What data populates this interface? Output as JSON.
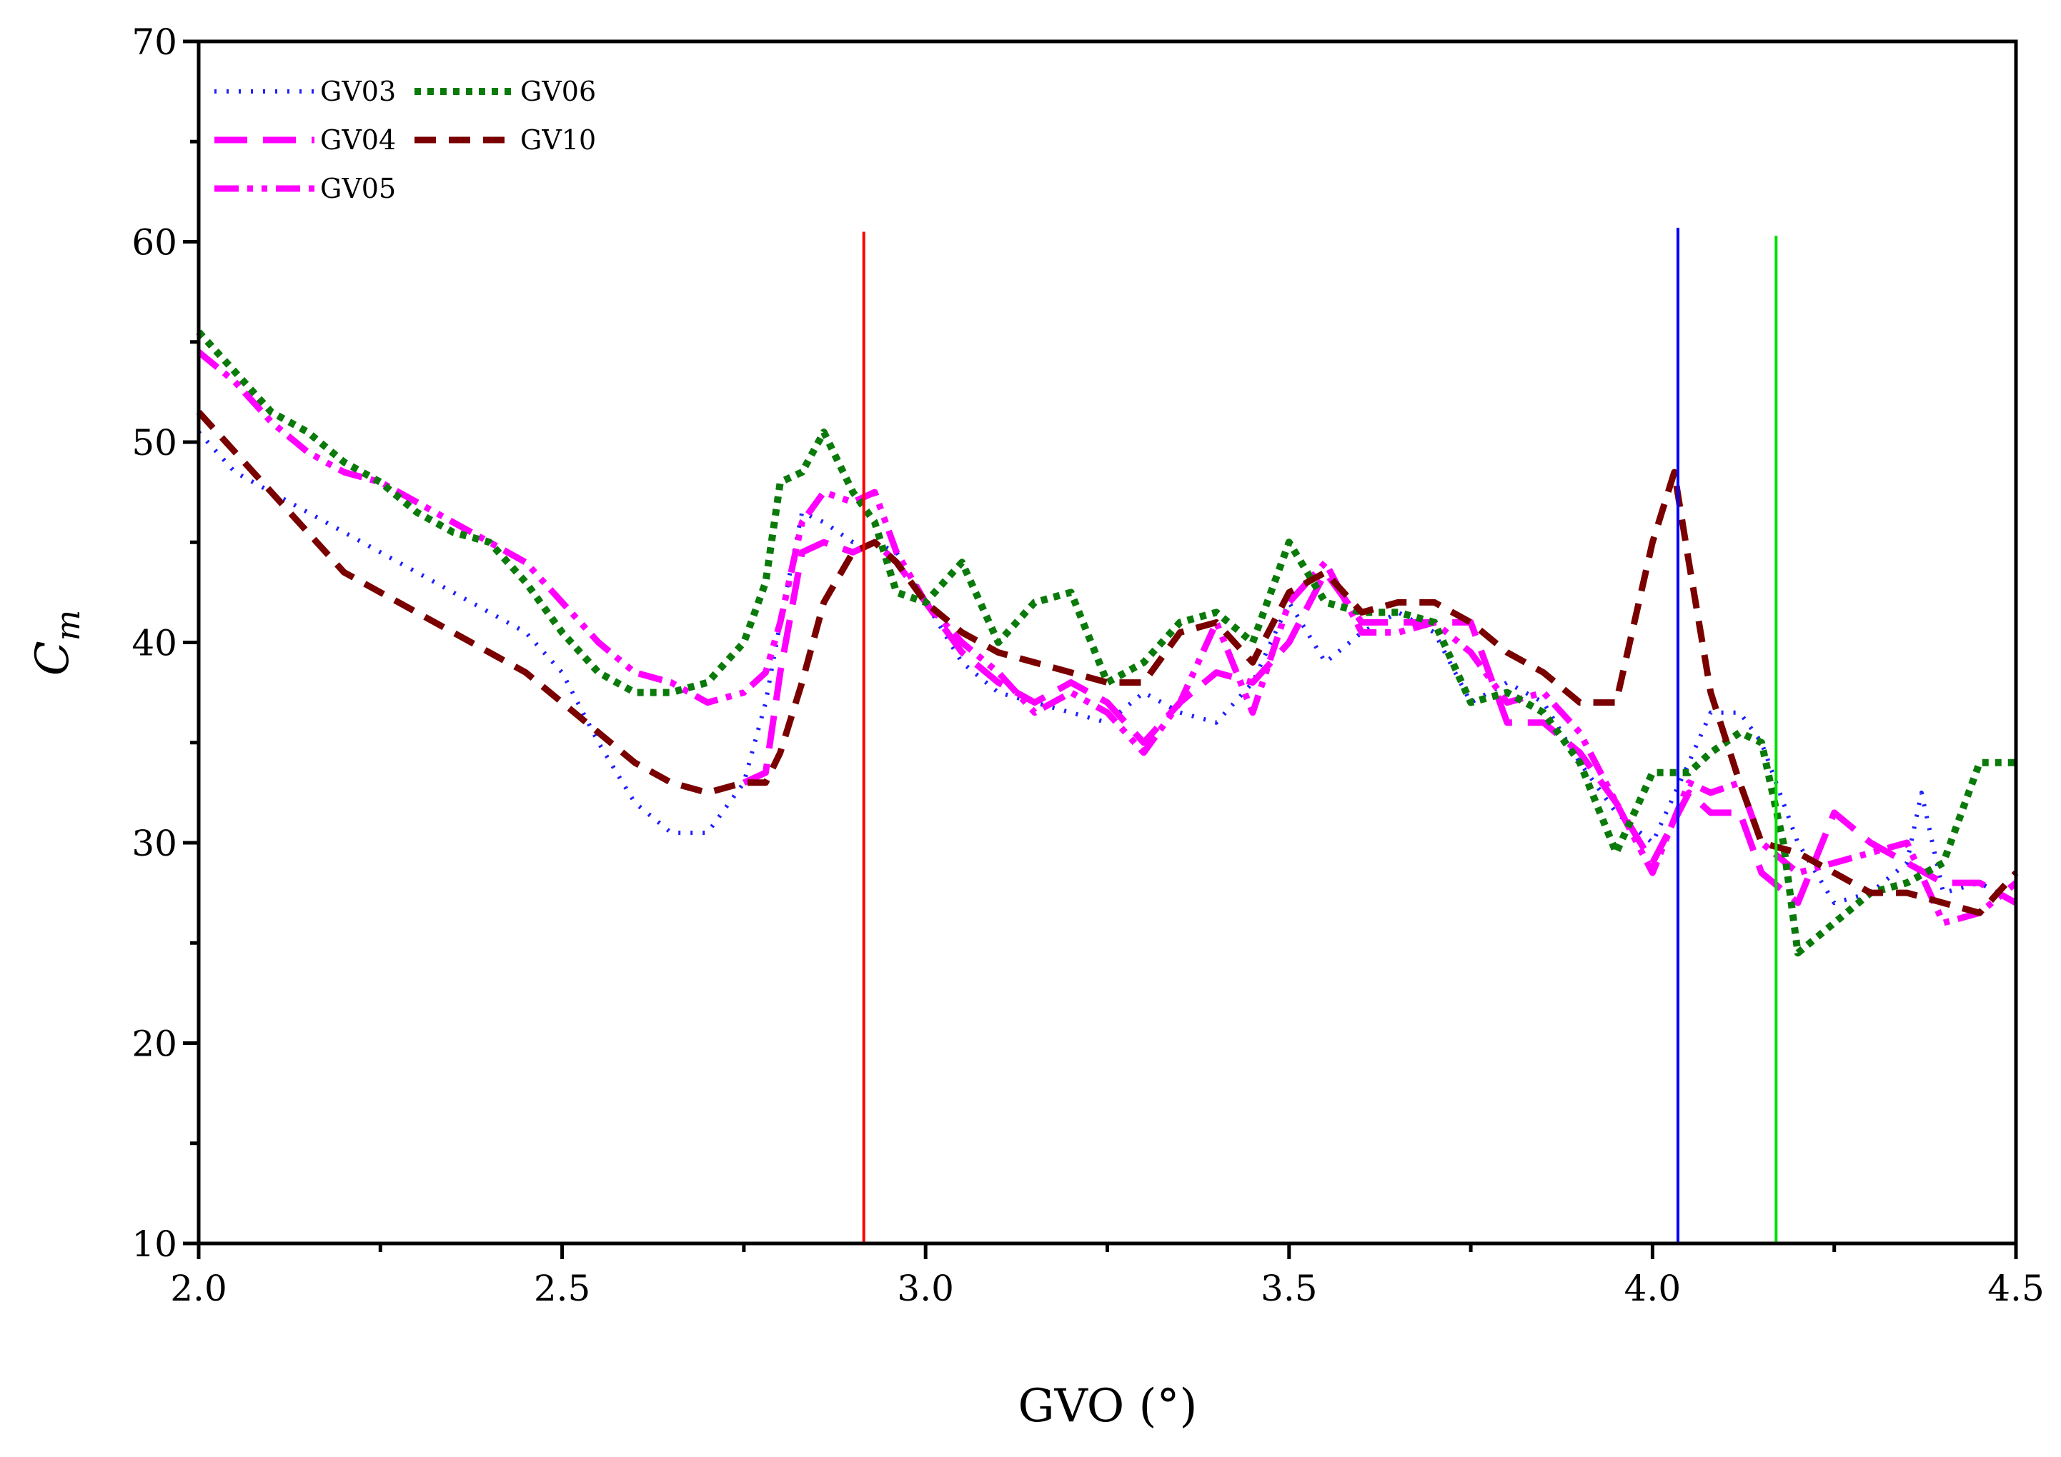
{
  "chart_data": {
    "type": "line",
    "title": "",
    "xlabel": "GVO (°)",
    "ylabel": "C",
    "ylabel_sub": "m",
    "xlim": [
      2.0,
      4.5
    ],
    "ylim": [
      10,
      70
    ],
    "xticks": [
      2.0,
      2.5,
      3.0,
      3.5,
      4.0,
      4.5
    ],
    "xtick_labels": [
      "2.0",
      "2.5",
      "3.0",
      "3.5",
      "4.0",
      "4.5"
    ],
    "yticks": [
      10,
      20,
      30,
      40,
      50,
      60,
      70
    ],
    "ytick_labels": [
      "10",
      "20",
      "30",
      "40",
      "50",
      "60",
      "70"
    ],
    "grid": false,
    "legend_position": "top-left",
    "series": [
      {
        "name": "GV03",
        "color": "#1f1fff",
        "style": "dotted-fine",
        "x": [
          2.0,
          2.05,
          2.1,
          2.15,
          2.2,
          2.25,
          2.3,
          2.35,
          2.4,
          2.45,
          2.5,
          2.55,
          2.6,
          2.65,
          2.7,
          2.75,
          2.78,
          2.8,
          2.83,
          2.86,
          2.9,
          2.93,
          2.96,
          3.0,
          3.05,
          3.1,
          3.15,
          3.2,
          3.25,
          3.3,
          3.35,
          3.4,
          3.45,
          3.5,
          3.55,
          3.6,
          3.65,
          3.7,
          3.75,
          3.8,
          3.85,
          3.9,
          3.95,
          4.0,
          4.05,
          4.08,
          4.12,
          4.15,
          4.2,
          4.25,
          4.3,
          4.35,
          4.37,
          4.4,
          4.45,
          4.5
        ],
        "y": [
          50.5,
          48.5,
          47.5,
          46.5,
          45.5,
          44.5,
          43.5,
          42.5,
          41.5,
          40.5,
          38.5,
          35.0,
          32.0,
          30.5,
          30.5,
          33.0,
          37.0,
          41.0,
          46.5,
          46.0,
          45.0,
          45.0,
          44.5,
          42.0,
          39.0,
          37.5,
          37.0,
          36.5,
          36.0,
          37.5,
          36.5,
          36.0,
          38.0,
          42.0,
          39.0,
          40.5,
          41.5,
          40.5,
          37.0,
          38.0,
          37.0,
          34.0,
          31.5,
          30.0,
          34.0,
          36.5,
          36.5,
          35.0,
          30.0,
          27.0,
          27.5,
          29.0,
          32.5,
          27.5,
          28.0,
          27.0
        ]
      },
      {
        "name": "GV04",
        "color": "#ff00ff",
        "style": "long-dash",
        "x": [
          2.75,
          2.78,
          2.8,
          2.83,
          2.86,
          2.9,
          2.93,
          2.96,
          3.0,
          3.05,
          3.1,
          3.15,
          3.2,
          3.25,
          3.3,
          3.35,
          3.4,
          3.45,
          3.5,
          3.55,
          3.6,
          3.65,
          3.7,
          3.75,
          3.8,
          3.85,
          3.9,
          3.95,
          4.0,
          4.05,
          4.08,
          4.12,
          4.15,
          4.2,
          4.25,
          4.3,
          4.35,
          4.4,
          4.45,
          4.5
        ],
        "y": [
          33.0,
          33.5,
          38.5,
          44.5,
          45.0,
          44.5,
          45.0,
          44.0,
          42.0,
          39.5,
          38.0,
          37.0,
          38.0,
          37.0,
          35.0,
          37.0,
          38.5,
          38.0,
          40.0,
          43.5,
          41.0,
          41.0,
          41.0,
          41.0,
          36.0,
          36.0,
          34.5,
          32.0,
          29.0,
          32.5,
          31.5,
          31.5,
          28.5,
          27.0,
          31.5,
          30.0,
          29.0,
          28.0,
          28.0,
          27.0
        ]
      },
      {
        "name": "GV05",
        "color": "#ff00ff",
        "style": "dash-dot-dot",
        "x": [
          2.0,
          2.05,
          2.1,
          2.15,
          2.2,
          2.25,
          2.3,
          2.35,
          2.4,
          2.45,
          2.5,
          2.55,
          2.6,
          2.65,
          2.7,
          2.75,
          2.78,
          2.8,
          2.83,
          2.86,
          2.9,
          2.93,
          2.96,
          3.0,
          3.05,
          3.1,
          3.15,
          3.2,
          3.25,
          3.3,
          3.35,
          3.4,
          3.45,
          3.5,
          3.55,
          3.6,
          3.65,
          3.7,
          3.75,
          3.8,
          3.85,
          3.9,
          3.95,
          4.0,
          4.05,
          4.08,
          4.12,
          4.15,
          4.2,
          4.25,
          4.3,
          4.35,
          4.4,
          4.45,
          4.5
        ],
        "y": [
          54.5,
          53.0,
          51.0,
          49.5,
          48.5,
          48.0,
          47.0,
          46.0,
          45.0,
          44.0,
          42.0,
          40.0,
          38.5,
          38.0,
          37.0,
          37.5,
          38.5,
          41.0,
          46.0,
          47.5,
          47.0,
          47.5,
          44.5,
          42.0,
          40.0,
          38.5,
          36.5,
          37.5,
          36.5,
          34.5,
          37.0,
          41.0,
          36.5,
          42.0,
          44.0,
          40.5,
          40.5,
          41.0,
          39.5,
          37.0,
          37.5,
          35.5,
          32.0,
          28.5,
          33.0,
          32.5,
          33.0,
          30.0,
          28.5,
          29.0,
          29.5,
          30.0,
          26.0,
          26.5,
          28.0
        ]
      },
      {
        "name": "GV06",
        "color": "#0a7a0a",
        "style": "dotted-heavy",
        "x": [
          2.0,
          2.05,
          2.1,
          2.15,
          2.2,
          2.25,
          2.3,
          2.35,
          2.4,
          2.45,
          2.5,
          2.55,
          2.6,
          2.65,
          2.7,
          2.75,
          2.78,
          2.8,
          2.83,
          2.86,
          2.9,
          2.93,
          2.96,
          3.0,
          3.05,
          3.1,
          3.15,
          3.2,
          3.25,
          3.3,
          3.35,
          3.4,
          3.45,
          3.5,
          3.55,
          3.6,
          3.65,
          3.7,
          3.75,
          3.8,
          3.85,
          3.9,
          3.95,
          4.0,
          4.05,
          4.08,
          4.12,
          4.15,
          4.18,
          4.2,
          4.25,
          4.3,
          4.35,
          4.4,
          4.45,
          4.5
        ],
        "y": [
          55.5,
          53.5,
          51.5,
          50.5,
          49.0,
          48.0,
          46.5,
          45.5,
          45.0,
          43.0,
          40.5,
          38.5,
          37.5,
          37.5,
          38.0,
          40.0,
          43.0,
          48.0,
          48.5,
          50.5,
          47.5,
          46.0,
          42.5,
          42.0,
          44.0,
          40.0,
          42.0,
          42.5,
          38.0,
          39.0,
          41.0,
          41.5,
          40.0,
          45.0,
          42.0,
          41.5,
          41.5,
          41.0,
          37.0,
          37.5,
          36.5,
          34.0,
          29.5,
          33.5,
          33.5,
          34.5,
          35.5,
          35.0,
          30.0,
          24.5,
          26.0,
          27.5,
          28.0,
          29.0,
          34.0,
          34.0
        ]
      },
      {
        "name": "GV10",
        "color": "#7a0000",
        "style": "dash",
        "x": [
          2.0,
          2.05,
          2.1,
          2.15,
          2.2,
          2.25,
          2.3,
          2.35,
          2.4,
          2.45,
          2.5,
          2.55,
          2.6,
          2.65,
          2.7,
          2.75,
          2.78,
          2.8,
          2.83,
          2.86,
          2.9,
          2.93,
          2.96,
          3.0,
          3.05,
          3.1,
          3.15,
          3.2,
          3.25,
          3.3,
          3.35,
          3.4,
          3.45,
          3.5,
          3.55,
          3.6,
          3.65,
          3.7,
          3.75,
          3.8,
          3.85,
          3.9,
          3.95,
          4.0,
          4.03,
          4.05,
          4.08,
          4.12,
          4.15,
          4.2,
          4.25,
          4.3,
          4.35,
          4.4,
          4.45,
          4.5
        ],
        "y": [
          51.5,
          49.5,
          47.5,
          45.5,
          43.5,
          42.5,
          41.5,
          40.5,
          39.5,
          38.5,
          37.0,
          35.5,
          34.0,
          33.0,
          32.5,
          33.0,
          33.0,
          34.5,
          38.0,
          42.0,
          44.5,
          45.0,
          44.0,
          42.0,
          40.5,
          39.5,
          39.0,
          38.5,
          38.0,
          38.0,
          40.5,
          41.0,
          39.0,
          42.5,
          43.5,
          41.5,
          42.0,
          42.0,
          41.0,
          39.5,
          38.5,
          37.0,
          37.0,
          45.0,
          48.5,
          44.0,
          37.5,
          33.0,
          30.0,
          29.5,
          28.5,
          27.5,
          27.5,
          27.0,
          26.5,
          28.5
        ]
      }
    ],
    "vertical_markers": [
      {
        "x": 2.915,
        "y_from": 10,
        "y_to": 60.5,
        "color": "#ff0000"
      },
      {
        "x": 4.035,
        "y_from": 10,
        "y_to": 60.7,
        "color": "#0000ff"
      },
      {
        "x": 4.17,
        "y_from": 10,
        "y_to": 60.3,
        "color": "#00dd00"
      }
    ]
  }
}
